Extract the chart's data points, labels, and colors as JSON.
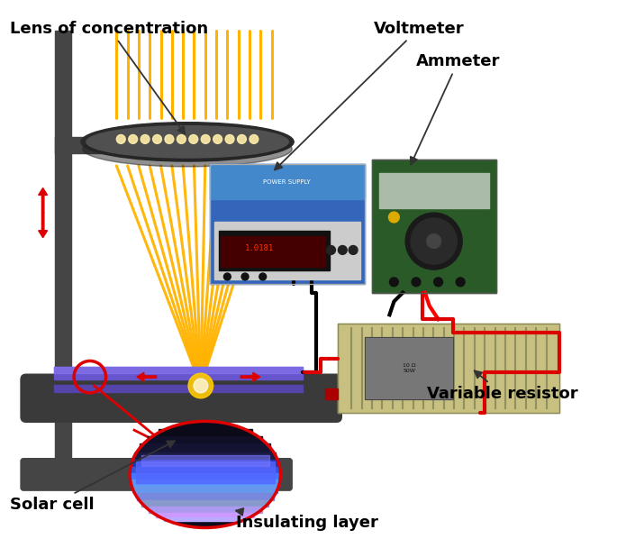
{
  "figsize": [
    6.85,
    6.08
  ],
  "dpi": 100,
  "background_color": "#ffffff",
  "stand_color": "#505050",
  "lens_color": "#383838",
  "lens_inner_color": "#686868",
  "orange": "#FFA500",
  "red": "#CC0000",
  "ray_color": "#FFB300",
  "labels": {
    "lens": "Lens of concentration",
    "voltmeter": "Voltmeter",
    "ammeter": "Ammeter",
    "resistor": "Variable resistor",
    "solar": "Solar cell",
    "insulating": "Insulating layer"
  }
}
